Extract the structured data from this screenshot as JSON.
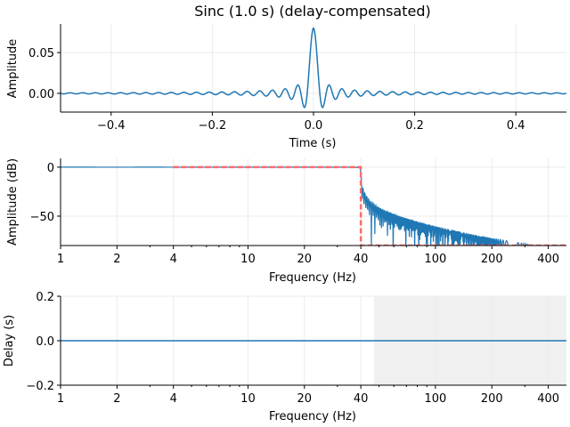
{
  "chart_data": [
    {
      "type": "line",
      "title": "Sinc (1.0 s) (delay-compensated)",
      "xlabel": "Time (s)",
      "ylabel": "Amplitude",
      "xlim": [
        -0.5,
        0.5
      ],
      "ylim": [
        -0.023,
        0.085
      ],
      "xticks": [
        -0.4,
        -0.2,
        0.0,
        0.2,
        0.4
      ],
      "xtick_labels": [
        "−0.4",
        "−0.2",
        "0.0",
        "0.2",
        "0.4"
      ],
      "yticks": [
        0.0,
        0.05
      ],
      "ytick_labels": [
        "0.00",
        "0.05"
      ],
      "grid": true,
      "series": [
        {
          "kind": "sinc impulse response",
          "peak": 0.08,
          "cutoff_hz": 40,
          "sample_step_s": 0.001,
          "color": "#1f77b4"
        }
      ]
    },
    {
      "type": "line",
      "xlabel": "Frequency (Hz)",
      "ylabel": "Amplitude (dB)",
      "xscale": "log",
      "xlim": [
        1,
        500
      ],
      "ylim": [
        -80,
        9
      ],
      "xticks": [
        1,
        2,
        4,
        10,
        20,
        40,
        100,
        200,
        400
      ],
      "xtick_labels": [
        "1",
        "2",
        "4",
        "10",
        "20",
        "40",
        "100",
        "200",
        "400"
      ],
      "yticks": [
        -50,
        0
      ],
      "ytick_labels": [
        "−50",
        "0"
      ],
      "grid": true,
      "series": [
        {
          "kind": "magnitude response (dB)",
          "color": "#1f77b4"
        },
        {
          "kind": "desired response",
          "style": "dashed",
          "color": "#ff6b6b",
          "points": [
            [
              4,
              0
            ],
            [
              40,
              0
            ],
            [
              40,
              -80
            ],
            [
              500,
              -80
            ]
          ]
        }
      ]
    },
    {
      "type": "line",
      "xlabel": "Frequency (Hz)",
      "ylabel": "Delay (s)",
      "xscale": "log",
      "xlim": [
        1,
        500
      ],
      "ylim": [
        -0.2,
        0.2
      ],
      "xticks": [
        1,
        2,
        4,
        10,
        20,
        40,
        100,
        200,
        400
      ],
      "xtick_labels": [
        "1",
        "2",
        "4",
        "10",
        "20",
        "40",
        "100",
        "200",
        "400"
      ],
      "yticks": [
        -0.2,
        0.0,
        0.2
      ],
      "ytick_labels": [
        "−0.2",
        "0.0",
        "0.2"
      ],
      "grid": true,
      "shaded_region_hz": [
        47,
        500
      ],
      "shade_color": "#f0f0f0",
      "series": [
        {
          "kind": "group delay",
          "points": [
            [
              1,
              0
            ],
            [
              500,
              0
            ]
          ],
          "color": "#1f77b4"
        }
      ]
    }
  ]
}
